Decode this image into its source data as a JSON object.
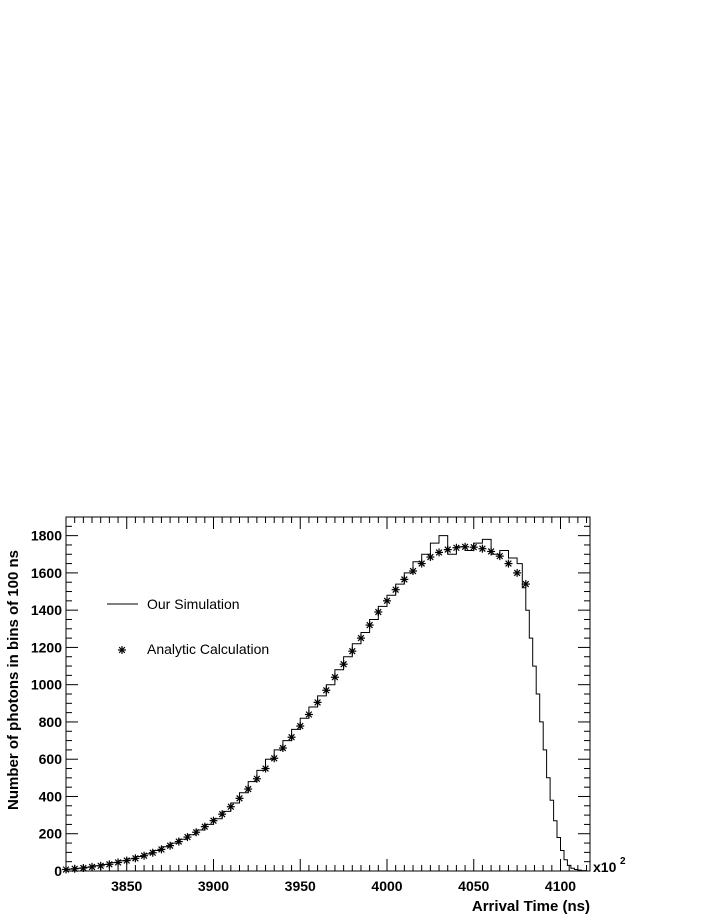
{
  "chart_data": {
    "type": "line",
    "xlabel": "Arrival Time (ns)",
    "ylabel": "Number of photons in bins of 100 ns",
    "x_multiplier": "x10",
    "x_multiplier_exp": "2",
    "xlim": [
      3815,
      4117
    ],
    "ylim": [
      0,
      1900
    ],
    "x_ticks": [
      3850,
      3900,
      3950,
      4000,
      4050,
      4100
    ],
    "y_ticks": [
      0,
      200,
      400,
      600,
      800,
      1000,
      1200,
      1400,
      1600,
      1800
    ],
    "x_tick_labels": [
      "3850",
      "3900",
      "3950",
      "4000",
      "4050",
      "4100"
    ],
    "y_tick_labels": [
      "0",
      "200",
      "400",
      "600",
      "800",
      "1000",
      "1200",
      "1400",
      "1600",
      "1800"
    ],
    "legend_position": "left",
    "series": [
      {
        "name": "Our Simulation",
        "style": "step",
        "color": "#000000",
        "x": [
          3815,
          3820,
          3825,
          3830,
          3835,
          3840,
          3845,
          3850,
          3855,
          3860,
          3865,
          3870,
          3875,
          3880,
          3885,
          3890,
          3895,
          3900,
          3905,
          3910,
          3915,
          3920,
          3925,
          3930,
          3935,
          3940,
          3945,
          3950,
          3955,
          3960,
          3965,
          3970,
          3975,
          3980,
          3985,
          3990,
          3995,
          4000,
          4005,
          4010,
          4015,
          4020,
          4025,
          4030,
          4035,
          4040,
          4045,
          4050,
          4055,
          4060,
          4065,
          4070,
          4075,
          4078,
          4080,
          4082,
          4084,
          4086,
          4088,
          4090,
          4092,
          4094,
          4096,
          4098,
          4100,
          4102,
          4104,
          4106,
          4108,
          4110,
          4112,
          4115
        ],
        "y": [
          10,
          15,
          20,
          28,
          35,
          45,
          55,
          65,
          78,
          92,
          110,
          130,
          150,
          170,
          195,
          220,
          250,
          280,
          320,
          365,
          420,
          480,
          540,
          600,
          650,
          700,
          760,
          820,
          880,
          940,
          1000,
          1080,
          1150,
          1220,
          1280,
          1350,
          1420,
          1480,
          1540,
          1600,
          1660,
          1700,
          1760,
          1800,
          1700,
          1740,
          1720,
          1760,
          1780,
          1700,
          1720,
          1680,
          1650,
          1520,
          1400,
          1250,
          1100,
          950,
          800,
          650,
          500,
          380,
          270,
          180,
          110,
          60,
          30,
          15,
          8,
          5,
          2,
          0
        ]
      },
      {
        "name": "Analytic Calculation",
        "style": "marker",
        "marker": "asterisk",
        "color": "#000000",
        "x": [
          3815,
          3820,
          3825,
          3830,
          3835,
          3840,
          3845,
          3850,
          3855,
          3860,
          3865,
          3870,
          3875,
          3880,
          3885,
          3890,
          3895,
          3900,
          3905,
          3910,
          3915,
          3920,
          3925,
          3930,
          3935,
          3940,
          3945,
          3950,
          3955,
          3960,
          3965,
          3970,
          3975,
          3980,
          3985,
          3990,
          3995,
          4000,
          4005,
          4010,
          4015,
          4020,
          4025,
          4030,
          4035,
          4040,
          4045,
          4050,
          4055,
          4060,
          4065,
          4070,
          4075,
          4080
        ],
        "y": [
          8,
          12,
          16,
          22,
          28,
          36,
          46,
          56,
          68,
          82,
          98,
          116,
          136,
          158,
          182,
          208,
          238,
          270,
          305,
          345,
          390,
          440,
          495,
          550,
          605,
          660,
          718,
          778,
          840,
          905,
          970,
          1040,
          1110,
          1180,
          1250,
          1320,
          1390,
          1450,
          1510,
          1565,
          1610,
          1650,
          1685,
          1710,
          1725,
          1735,
          1740,
          1738,
          1730,
          1715,
          1690,
          1650,
          1600,
          1540
        ]
      }
    ]
  }
}
